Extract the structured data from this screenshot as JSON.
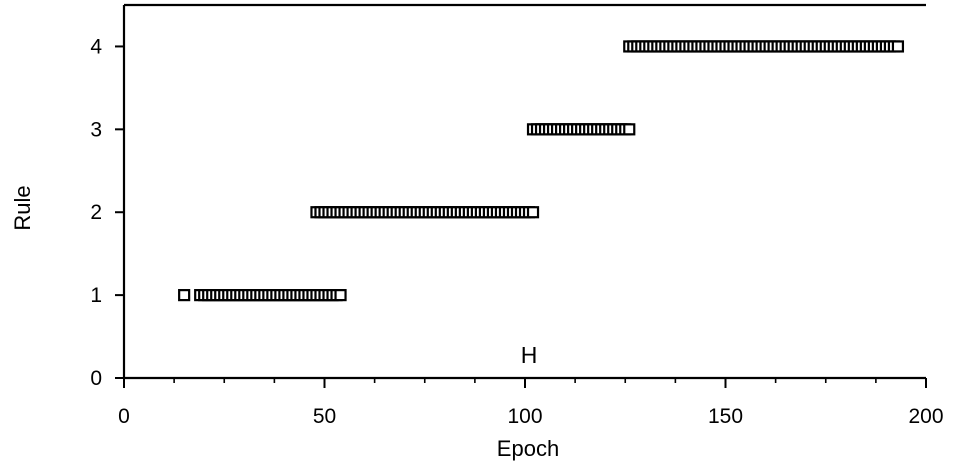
{
  "chart_data": {
    "type": "scatter",
    "title": "",
    "xlabel": "Epoch",
    "ylabel": "Rule",
    "xlim": [
      0,
      200
    ],
    "ylim": [
      0,
      4.5
    ],
    "xticks": [
      0,
      50,
      100,
      150,
      200
    ],
    "xtick_labels": [
      "0",
      "50",
      "100",
      "150",
      "200"
    ],
    "yticks": [
      0,
      1,
      2,
      3,
      4
    ],
    "ytick_labels": [
      "0",
      "1",
      "2",
      "3",
      "4"
    ],
    "grid": false,
    "marker": "open-square",
    "annotation": {
      "text": "H",
      "x": 101,
      "y": 0.28
    },
    "segments": [
      {
        "rule": 1,
        "epochs": [
          15
        ]
      },
      {
        "rule": 1,
        "epoch_start": 19,
        "epoch_end": 54
      },
      {
        "rule": 2,
        "epoch_start": 48,
        "epoch_end": 102
      },
      {
        "rule": 3,
        "epoch_start": 102,
        "epoch_end": 126
      },
      {
        "rule": 4,
        "epoch_start": 126,
        "epoch_end": 193
      }
    ]
  }
}
